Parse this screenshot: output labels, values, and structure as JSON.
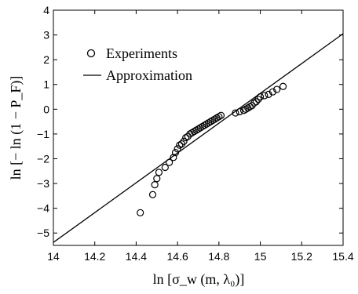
{
  "chart_data": {
    "type": "scatter",
    "title": "",
    "xlabel": "ln [σ_w (m, λ₀)]",
    "ylabel": "ln [− ln (1 − P_F)]",
    "xlim": [
      14.0,
      15.4
    ],
    "ylim": [
      -5.5,
      4.0
    ],
    "x_ticks": [
      14,
      14.2,
      14.4,
      14.6,
      14.8,
      15,
      15.2,
      15.4
    ],
    "x_tick_labels": [
      "14",
      "14.2",
      "14.4",
      "14.6",
      "14.8",
      "15",
      "15.2",
      "15.4"
    ],
    "y_ticks": [
      -5,
      -4,
      -3,
      -2,
      -1,
      0,
      1,
      2,
      3,
      4
    ],
    "y_tick_labels": [
      "−5",
      "−4",
      "−3",
      "−2",
      "−1",
      "0",
      "1",
      "2",
      "3",
      "4"
    ],
    "grid": false,
    "legend_position": "top-left",
    "series": [
      {
        "name": "Experiments",
        "kind": "scatter",
        "marker": "open-circle",
        "x": [
          14.42,
          14.48,
          14.49,
          14.5,
          14.51,
          14.54,
          14.56,
          14.58,
          14.59,
          14.6,
          14.61,
          14.62,
          14.63,
          14.64,
          14.65,
          14.66,
          14.67,
          14.68,
          14.69,
          14.7,
          14.71,
          14.72,
          14.73,
          14.74,
          14.75,
          14.76,
          14.77,
          14.78,
          14.79,
          14.8,
          14.81,
          14.88,
          14.9,
          14.92,
          14.93,
          14.94,
          14.95,
          14.96,
          14.97,
          14.98,
          14.99,
          15.0,
          15.02,
          15.04,
          15.06,
          15.08,
          15.11
        ],
        "y": [
          -4.18,
          -3.45,
          -3.05,
          -2.8,
          -2.55,
          -2.35,
          -2.15,
          -1.95,
          -1.75,
          -1.6,
          -1.45,
          -1.4,
          -1.3,
          -1.15,
          -1.1,
          -1.0,
          -0.95,
          -0.9,
          -0.85,
          -0.8,
          -0.75,
          -0.7,
          -0.65,
          -0.6,
          -0.55,
          -0.5,
          -0.45,
          -0.4,
          -0.35,
          -0.3,
          -0.25,
          -0.15,
          -0.1,
          -0.05,
          0.0,
          0.05,
          0.1,
          0.15,
          0.25,
          0.3,
          0.4,
          0.5,
          0.55,
          0.6,
          0.7,
          0.8,
          0.92
        ]
      },
      {
        "name": "Approximation",
        "kind": "line",
        "x": [
          13.98,
          15.4
        ],
        "y": [
          -5.5,
          3.05
        ]
      }
    ]
  }
}
